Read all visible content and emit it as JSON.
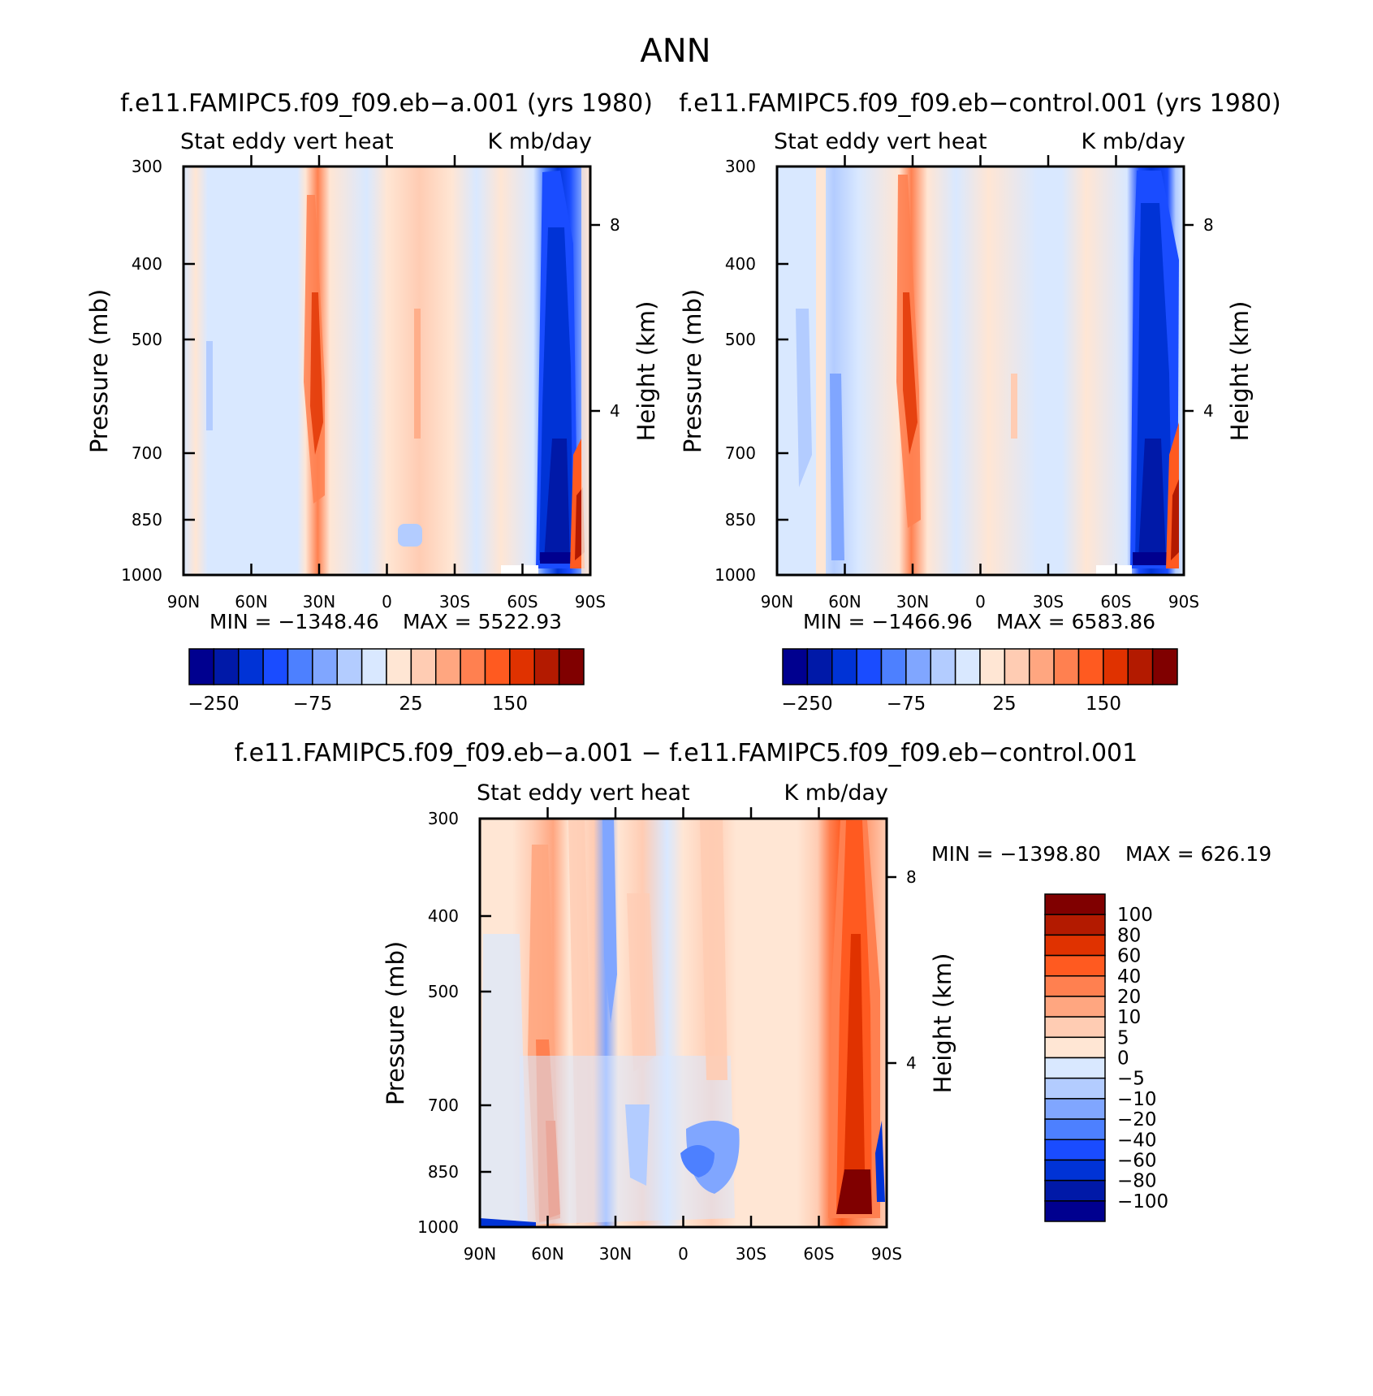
{
  "figure_title": "ANN",
  "chart_data": [
    {
      "type": "heatmap",
      "title": "f.e11.FAMIPC5.f09_f09.eb−a.001 (yrs 1980)",
      "subtitle_left": "Stat eddy vert heat",
      "subtitle_right": "K mb/day",
      "ylabel": "Pressure (mb)",
      "ylabel_right": "Height (km)",
      "x_ticks": [
        "90N",
        "60N",
        "30N",
        "0",
        "30S",
        "60S",
        "90S"
      ],
      "y_ticks": [
        "300",
        "400",
        "500",
        "700",
        "850",
        "1000"
      ],
      "y_right_ticks": [
        "8",
        "4"
      ],
      "ylim": [
        1000,
        300
      ],
      "min_label": "MIN = −1348.46",
      "max_label": "MAX = 5522.93",
      "colorbar_labels": [
        "−250",
        "−75",
        "25",
        "150"
      ],
      "colors": [
        "#00008f",
        "#0019a8",
        "#0033d6",
        "#1a4cff",
        "#4d80ff",
        "#80a6ff",
        "#b3ccff",
        "#d9e8ff",
        "#ffe6d4",
        "#ffccb3",
        "#ffa680",
        "#ff8050",
        "#ff5a20",
        "#e03200",
        "#b31a00",
        "#800000"
      ],
      "features": [
        {
          "lat": 30,
          "strength": 0.55,
          "desc": "warm column near 30N"
        },
        {
          "lat": -15,
          "strength": 0.25,
          "desc": "weak warm band"
        },
        {
          "lat": -75,
          "strength": -1.0,
          "desc": "strong cold column near 75S"
        },
        {
          "lat": -85,
          "strength": 1.0,
          "desc": "strong warm near 85S surface"
        }
      ]
    },
    {
      "type": "heatmap",
      "title": "f.e11.FAMIPC5.f09_f09.eb−control.001 (yrs 1980)",
      "subtitle_left": "Stat eddy vert heat",
      "subtitle_right": "K mb/day",
      "ylabel": "Pressure (mb)",
      "ylabel_right": "Height (km)",
      "x_ticks": [
        "90N",
        "60N",
        "30N",
        "0",
        "30S",
        "60S",
        "90S"
      ],
      "y_ticks": [
        "300",
        "400",
        "500",
        "700",
        "850",
        "1000"
      ],
      "y_right_ticks": [
        "8",
        "4"
      ],
      "ylim": [
        1000,
        300
      ],
      "min_label": "MIN = −1466.96",
      "max_label": "MAX = 6583.86",
      "colorbar_labels": [
        "−250",
        "−75",
        "25",
        "150"
      ],
      "colors": [
        "#00008f",
        "#0019a8",
        "#0033d6",
        "#1a4cff",
        "#4d80ff",
        "#80a6ff",
        "#b3ccff",
        "#d9e8ff",
        "#ffe6d4",
        "#ffccb3",
        "#ffa680",
        "#ff8050",
        "#ff5a20",
        "#e03200",
        "#b31a00",
        "#800000"
      ],
      "features": [
        {
          "lat": 30,
          "strength": 0.6,
          "desc": "warm column near 30N"
        },
        {
          "lat": -15,
          "strength": 0.2,
          "desc": "weak warm band"
        },
        {
          "lat": -75,
          "strength": -1.0,
          "desc": "strong cold column near 75S"
        },
        {
          "lat": -85,
          "strength": 1.0,
          "desc": "strong warm near 85S surface"
        }
      ]
    },
    {
      "type": "heatmap",
      "title": "f.e11.FAMIPC5.f09_f09.eb−a.001 − f.e11.FAMIPC5.f09_f09.eb−control.001",
      "subtitle_left": "Stat eddy vert heat",
      "subtitle_right": "K mb/day",
      "ylabel": "Pressure (mb)",
      "ylabel_right": "Height (km)",
      "x_ticks": [
        "90N",
        "60N",
        "30N",
        "0",
        "30S",
        "60S",
        "90S"
      ],
      "y_ticks": [
        "300",
        "400",
        "500",
        "700",
        "850",
        "1000"
      ],
      "y_right_ticks": [
        "8",
        "4"
      ],
      "ylim": [
        1000,
        300
      ],
      "min_label": "MIN = −1398.80",
      "max_label": "MAX = 626.19",
      "colorbar_labels": [
        "100",
        "80",
        "60",
        "40",
        "20",
        "10",
        "5",
        "0",
        "−5",
        "−10",
        "−20",
        "−40",
        "−60",
        "−80",
        "−100"
      ],
      "colors": [
        "#800000",
        "#b31a00",
        "#e03200",
        "#ff5a20",
        "#ff8050",
        "#ffa680",
        "#ffccb3",
        "#ffe6d4",
        "#d9e8ff",
        "#b3ccff",
        "#80a6ff",
        "#4d80ff",
        "#1a4cff",
        "#0033d6",
        "#0019a8",
        "#00008f"
      ],
      "features": [
        {
          "lat": 60,
          "strength": 0.5,
          "desc": "warm column near 60N"
        },
        {
          "lat": 30,
          "strength": -0.4,
          "desc": "cool column near 30N"
        },
        {
          "lat": 10,
          "strength": -0.3,
          "desc": "cool patch lower levels"
        },
        {
          "lat": -75,
          "strength": 1.0,
          "desc": "strong warm column near 75S"
        }
      ]
    }
  ]
}
